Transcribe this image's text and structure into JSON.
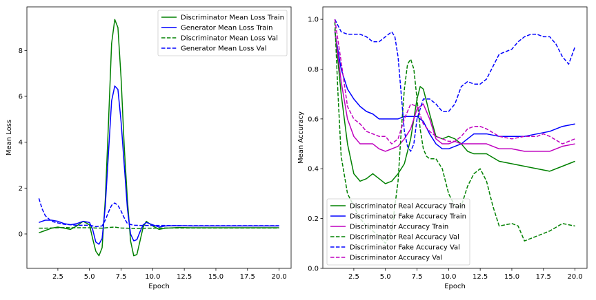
{
  "chart_data": [
    {
      "type": "line",
      "xlabel": "Epoch",
      "ylabel": "Mean Loss",
      "xlim": [
        0.05,
        20.95
      ],
      "ylim": [
        -1.5,
        9.9
      ],
      "xticks": [
        2.5,
        5.0,
        7.5,
        10.0,
        12.5,
        15.0,
        17.5,
        20.0
      ],
      "xtick_labels": [
        "2.5",
        "5.0",
        "7.5",
        "10.0",
        "12.5",
        "15.0",
        "17.5",
        "20.0"
      ],
      "yticks": [
        0,
        2,
        4,
        6,
        8
      ],
      "ytick_labels": [
        "0",
        "2",
        "4",
        "6",
        "8"
      ],
      "grid": false,
      "legend_position": "top-right",
      "series": [
        {
          "name": "Discriminator Mean Loss Train",
          "color": "#008000",
          "dash": "solid",
          "x": [
            1,
            1.5,
            2,
            2.5,
            3,
            3.5,
            4,
            4.5,
            5,
            5.25,
            5.5,
            5.75,
            6,
            6.25,
            6.5,
            6.75,
            7,
            7.25,
            7.5,
            7.75,
            8,
            8.25,
            8.5,
            8.75,
            9,
            9.25,
            9.5,
            10,
            10.5,
            11,
            12,
            13,
            14,
            15,
            16,
            17,
            18,
            19,
            20
          ],
          "y": [
            0.05,
            0.15,
            0.25,
            0.3,
            0.25,
            0.2,
            0.35,
            0.55,
            0.4,
            -0.2,
            -0.75,
            -0.95,
            -0.6,
            1.5,
            4.8,
            8.3,
            9.35,
            9.0,
            6.8,
            3.8,
            1.5,
            -0.3,
            -0.95,
            -0.9,
            -0.3,
            0.3,
            0.55,
            0.35,
            0.2,
            0.25,
            0.28,
            0.27,
            0.27,
            0.27,
            0.27,
            0.27,
            0.27,
            0.27,
            0.27
          ]
        },
        {
          "name": "Generator Mean Loss Train",
          "color": "#0000ff",
          "dash": "solid",
          "x": [
            1,
            1.5,
            2,
            2.5,
            3,
            3.5,
            4,
            4.5,
            5,
            5.25,
            5.5,
            5.75,
            6,
            6.25,
            6.5,
            6.75,
            7,
            7.25,
            7.5,
            7.75,
            8,
            8.25,
            8.5,
            8.75,
            9,
            9.25,
            9.5,
            10,
            10.5,
            11,
            12,
            13,
            14,
            15,
            16,
            17,
            18,
            19,
            20
          ],
          "y": [
            0.5,
            0.6,
            0.6,
            0.55,
            0.45,
            0.4,
            0.45,
            0.55,
            0.5,
            0.2,
            -0.35,
            -0.45,
            -0.2,
            1.2,
            3.5,
            5.8,
            6.45,
            6.3,
            4.9,
            3.0,
            1.1,
            0.0,
            -0.3,
            -0.25,
            0.1,
            0.4,
            0.5,
            0.4,
            0.3,
            0.35,
            0.36,
            0.35,
            0.35,
            0.35,
            0.35,
            0.35,
            0.35,
            0.35,
            0.35
          ]
        },
        {
          "name": "Discriminator Mean Loss Val",
          "color": "#008000",
          "dash": "dashed",
          "x": [
            1,
            1.5,
            2,
            2.5,
            3,
            3.5,
            4,
            4.5,
            5,
            5.5,
            6,
            6.5,
            7,
            7.5,
            8,
            8.5,
            9,
            9.5,
            10,
            11,
            12,
            13,
            14,
            15,
            16,
            17,
            18,
            19,
            20
          ],
          "y": [
            0.25,
            0.25,
            0.26,
            0.27,
            0.28,
            0.27,
            0.27,
            0.27,
            0.27,
            0.26,
            0.25,
            0.28,
            0.3,
            0.26,
            0.25,
            0.24,
            0.24,
            0.25,
            0.25,
            0.26,
            0.26,
            0.26,
            0.26,
            0.26,
            0.26,
            0.26,
            0.26,
            0.26,
            0.26
          ]
        },
        {
          "name": "Generator Mean Loss Val",
          "color": "#0000ff",
          "dash": "dashed",
          "x": [
            1,
            1.25,
            1.5,
            2,
            2.5,
            3,
            3.5,
            4,
            4.5,
            5,
            5.5,
            6,
            6.25,
            6.5,
            6.75,
            7,
            7.25,
            7.5,
            7.75,
            8,
            8.5,
            9,
            9.5,
            10,
            11,
            12,
            13,
            14,
            15,
            16,
            17,
            18,
            19,
            20
          ],
          "y": [
            1.55,
            1.1,
            0.8,
            0.55,
            0.48,
            0.42,
            0.4,
            0.38,
            0.38,
            0.38,
            0.32,
            0.35,
            0.6,
            0.95,
            1.25,
            1.35,
            1.25,
            1.0,
            0.7,
            0.45,
            0.38,
            0.37,
            0.37,
            0.37,
            0.37,
            0.36,
            0.36,
            0.36,
            0.36,
            0.36,
            0.36,
            0.36,
            0.36,
            0.36
          ]
        }
      ]
    },
    {
      "type": "line",
      "xlabel": "Epoch",
      "ylabel": "Mean Accuracy",
      "xlim": [
        0.05,
        20.95
      ],
      "ylim": [
        0.0,
        1.05
      ],
      "xticks": [
        2.5,
        5.0,
        7.5,
        10.0,
        12.5,
        15.0,
        17.5,
        20.0
      ],
      "xtick_labels": [
        "2.5",
        "5.0",
        "7.5",
        "10.0",
        "12.5",
        "15.0",
        "17.5",
        "20.0"
      ],
      "yticks": [
        0.0,
        0.2,
        0.4,
        0.6,
        0.8,
        1.0
      ],
      "ytick_labels": [
        "0.0",
        "0.2",
        "0.4",
        "0.6",
        "0.8",
        "1.0"
      ],
      "grid": false,
      "legend_position": "bottom-left",
      "series": [
        {
          "name": "Discriminator Real Accuracy Train",
          "color": "#008000",
          "dash": "solid",
          "x": [
            1,
            1.5,
            2,
            2.5,
            3,
            3.5,
            4,
            4.5,
            5,
            5.5,
            6,
            6.5,
            7,
            7.5,
            7.75,
            8,
            8.5,
            9,
            9.5,
            10,
            10.5,
            11,
            11.5,
            12,
            12.5,
            13,
            14,
            15,
            16,
            17,
            18,
            19,
            20
          ],
          "y": [
            0.96,
            0.7,
            0.5,
            0.38,
            0.35,
            0.36,
            0.38,
            0.36,
            0.34,
            0.35,
            0.38,
            0.42,
            0.52,
            0.68,
            0.73,
            0.72,
            0.62,
            0.53,
            0.52,
            0.53,
            0.52,
            0.5,
            0.47,
            0.46,
            0.46,
            0.46,
            0.43,
            0.42,
            0.41,
            0.4,
            0.39,
            0.41,
            0.43
          ]
        },
        {
          "name": "Discriminator Fake Accuracy Train",
          "color": "#0000ff",
          "dash": "solid",
          "x": [
            1,
            1.5,
            2,
            2.5,
            3,
            3.5,
            4,
            4.5,
            5,
            5.5,
            6,
            6.5,
            7,
            7.5,
            8,
            8.5,
            9,
            9.5,
            10,
            10.5,
            11,
            11.5,
            12,
            12.5,
            13,
            14,
            15,
            16,
            17,
            18,
            19,
            20
          ],
          "y": [
            0.95,
            0.8,
            0.72,
            0.68,
            0.65,
            0.63,
            0.62,
            0.6,
            0.6,
            0.6,
            0.6,
            0.61,
            0.61,
            0.61,
            0.59,
            0.54,
            0.5,
            0.48,
            0.48,
            0.49,
            0.5,
            0.52,
            0.54,
            0.54,
            0.54,
            0.53,
            0.53,
            0.53,
            0.54,
            0.55,
            0.57,
            0.58
          ]
        },
        {
          "name": "Discriminator Accuracy Train",
          "color": "#bf00bf",
          "dash": "solid",
          "x": [
            1,
            1.5,
            2,
            2.5,
            3,
            3.5,
            4,
            4.5,
            5,
            5.5,
            6,
            6.5,
            7,
            7.5,
            8,
            8.5,
            9,
            9.5,
            10,
            10.5,
            11,
            12,
            13,
            14,
            15,
            16,
            17,
            18,
            19,
            20
          ],
          "y": [
            0.96,
            0.75,
            0.6,
            0.53,
            0.5,
            0.5,
            0.5,
            0.48,
            0.47,
            0.48,
            0.49,
            0.52,
            0.56,
            0.64,
            0.66,
            0.6,
            0.52,
            0.5,
            0.5,
            0.51,
            0.5,
            0.5,
            0.5,
            0.48,
            0.48,
            0.47,
            0.47,
            0.47,
            0.49,
            0.5
          ]
        },
        {
          "name": "Discriminator Real Accuracy Val",
          "color": "#008000",
          "dash": "dashed",
          "x": [
            1,
            1.25,
            1.5,
            2,
            2.5,
            3,
            3.5,
            4,
            4.5,
            5,
            5.5,
            6,
            6.25,
            6.5,
            6.75,
            7,
            7.25,
            7.5,
            7.75,
            8,
            8.25,
            8.5,
            9,
            9.5,
            10,
            10.5,
            11,
            11.5,
            12,
            12.5,
            13,
            13.5,
            14,
            15,
            15.5,
            16,
            16.5,
            17,
            18,
            19,
            20
          ],
          "y": [
            0.99,
            0.7,
            0.45,
            0.3,
            0.25,
            0.2,
            0.17,
            0.15,
            0.13,
            0.1,
            0.15,
            0.35,
            0.55,
            0.72,
            0.82,
            0.84,
            0.8,
            0.68,
            0.56,
            0.48,
            0.45,
            0.44,
            0.44,
            0.4,
            0.3,
            0.25,
            0.25,
            0.33,
            0.38,
            0.4,
            0.35,
            0.25,
            0.17,
            0.18,
            0.17,
            0.11,
            0.12,
            0.13,
            0.15,
            0.18,
            0.17
          ]
        },
        {
          "name": "Discriminator Fake Accuracy Val",
          "color": "#0000ff",
          "dash": "dashed",
          "x": [
            1,
            1.5,
            2,
            2.5,
            3,
            3.5,
            4,
            4.5,
            5,
            5.5,
            5.75,
            6,
            6.25,
            6.5,
            6.75,
            7,
            7.25,
            7.5,
            8,
            8.5,
            9,
            9.5,
            10,
            10.5,
            11,
            11.5,
            12,
            12.5,
            13,
            13.5,
            14,
            15,
            15.5,
            16,
            16.5,
            17,
            17.5,
            18,
            18.5,
            19,
            19.5,
            20
          ],
          "y": [
            1.0,
            0.95,
            0.94,
            0.94,
            0.94,
            0.93,
            0.91,
            0.91,
            0.93,
            0.95,
            0.93,
            0.85,
            0.7,
            0.55,
            0.49,
            0.47,
            0.5,
            0.6,
            0.68,
            0.68,
            0.66,
            0.63,
            0.63,
            0.66,
            0.73,
            0.75,
            0.74,
            0.74,
            0.76,
            0.81,
            0.86,
            0.88,
            0.91,
            0.93,
            0.94,
            0.94,
            0.93,
            0.93,
            0.9,
            0.85,
            0.82,
            0.89
          ]
        },
        {
          "name": "Discriminator Accuracy Val",
          "color": "#bf00bf",
          "dash": "dashed",
          "x": [
            1,
            1.5,
            2,
            2.5,
            3,
            3.5,
            4,
            4.5,
            5,
            5.5,
            6,
            6.5,
            7,
            7.5,
            8,
            8.5,
            9,
            9.5,
            10,
            10.5,
            11,
            11.5,
            12,
            12.5,
            13,
            14,
            15,
            16,
            17,
            17.5,
            18,
            19,
            20
          ],
          "y": [
            1.0,
            0.83,
            0.65,
            0.6,
            0.58,
            0.55,
            0.54,
            0.53,
            0.53,
            0.5,
            0.52,
            0.6,
            0.66,
            0.65,
            0.58,
            0.55,
            0.53,
            0.52,
            0.51,
            0.51,
            0.53,
            0.56,
            0.57,
            0.57,
            0.56,
            0.53,
            0.52,
            0.53,
            0.53,
            0.54,
            0.53,
            0.5,
            0.52
          ]
        }
      ]
    }
  ]
}
